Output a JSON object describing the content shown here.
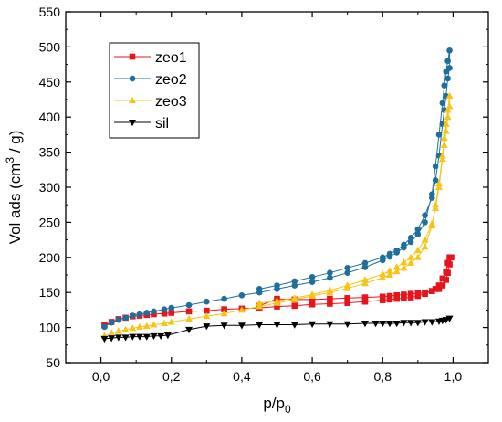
{
  "chart_data": {
    "type": "line",
    "xlabel": "p/p",
    "xlabel_sub": "0",
    "ylabel": "Vol ads (cm",
    "ylabel_sup": "3",
    "ylabel_tail": " / g)",
    "xlim": [
      -0.1,
      1.1
    ],
    "ylim": [
      50,
      550
    ],
    "xticks": [
      0.0,
      0.2,
      0.4,
      0.6,
      0.8,
      1.0
    ],
    "xtick_labels": [
      "0,0",
      "0,2",
      "0,4",
      "0,6",
      "0,8",
      "1,0"
    ],
    "yticks": [
      50,
      100,
      150,
      200,
      250,
      300,
      350,
      400,
      450,
      500,
      550
    ],
    "ytick_labels": [
      "50",
      "100",
      "150",
      "200",
      "250",
      "300",
      "350",
      "400",
      "450",
      "500",
      "550"
    ],
    "grid": false,
    "legend_position": "top-left",
    "series": [
      {
        "name": "zeo1",
        "color": "#e8141c",
        "marker": "square",
        "x": [
          0.01,
          0.03,
          0.05,
          0.07,
          0.09,
          0.11,
          0.13,
          0.15,
          0.18,
          0.2,
          0.25,
          0.3,
          0.35,
          0.4,
          0.45,
          0.5,
          0.55,
          0.6,
          0.65,
          0.7,
          0.75,
          0.8,
          0.82,
          0.84,
          0.86,
          0.88,
          0.9,
          0.92,
          0.94,
          0.95,
          0.96,
          0.97,
          0.98,
          0.985,
          0.99,
          0.995,
          0.99,
          0.985,
          0.98,
          0.97,
          0.96,
          0.94,
          0.92,
          0.9,
          0.88,
          0.86,
          0.84,
          0.82,
          0.8,
          0.75,
          0.7,
          0.65,
          0.6,
          0.55,
          0.5,
          0.45
        ],
        "y": [
          103,
          108,
          112,
          114,
          116,
          117,
          118,
          119,
          120,
          121,
          123,
          124,
          126,
          127,
          128,
          130,
          131,
          133,
          134,
          135,
          137,
          139,
          140,
          141,
          142,
          143,
          145,
          148,
          152,
          155,
          160,
          170,
          180,
          192,
          200,
          200,
          190,
          178,
          168,
          160,
          155,
          152,
          150,
          149,
          148,
          147,
          146,
          145,
          144,
          143,
          142,
          141,
          140,
          140,
          141,
          131
        ]
      },
      {
        "name": "zeo2",
        "color": "#1f6f9c",
        "marker": "circle",
        "x": [
          0.01,
          0.03,
          0.05,
          0.07,
          0.09,
          0.11,
          0.13,
          0.15,
          0.18,
          0.2,
          0.25,
          0.3,
          0.35,
          0.4,
          0.45,
          0.5,
          0.55,
          0.6,
          0.65,
          0.7,
          0.75,
          0.8,
          0.82,
          0.84,
          0.86,
          0.88,
          0.9,
          0.92,
          0.94,
          0.95,
          0.96,
          0.97,
          0.975,
          0.98,
          0.985,
          0.99,
          0.99,
          0.985,
          0.98,
          0.975,
          0.97,
          0.96,
          0.95,
          0.94,
          0.92,
          0.9,
          0.88,
          0.86,
          0.84,
          0.82,
          0.8,
          0.75,
          0.7,
          0.65,
          0.6,
          0.55,
          0.5,
          0.45
        ],
        "y": [
          101,
          107,
          111,
          114,
          117,
          119,
          121,
          123,
          126,
          128,
          132,
          137,
          141,
          146,
          150,
          155,
          160,
          165,
          171,
          178,
          186,
          196,
          201,
          207,
          214,
          222,
          233,
          250,
          290,
          330,
          375,
          420,
          445,
          465,
          480,
          495,
          470,
          455,
          430,
          410,
          390,
          345,
          310,
          285,
          260,
          240,
          228,
          218,
          210,
          205,
          200,
          192,
          185,
          178,
          172,
          166,
          160,
          155
        ]
      },
      {
        "name": "zeo3",
        "color": "#f5c518",
        "marker": "triangle-up",
        "x": [
          0.01,
          0.03,
          0.05,
          0.07,
          0.09,
          0.11,
          0.13,
          0.15,
          0.18,
          0.2,
          0.25,
          0.3,
          0.35,
          0.4,
          0.45,
          0.5,
          0.55,
          0.6,
          0.65,
          0.7,
          0.75,
          0.8,
          0.82,
          0.84,
          0.86,
          0.88,
          0.9,
          0.92,
          0.94,
          0.95,
          0.96,
          0.97,
          0.975,
          0.98,
          0.985,
          0.99,
          0.99,
          0.985,
          0.98,
          0.975,
          0.97,
          0.96,
          0.95,
          0.94,
          0.92,
          0.9,
          0.88,
          0.86,
          0.84,
          0.82,
          0.8,
          0.75,
          0.7,
          0.65,
          0.6,
          0.55,
          0.5,
          0.45
        ],
        "y": [
          88,
          92,
          95,
          97,
          99,
          101,
          102,
          104,
          106,
          108,
          112,
          116,
          120,
          125,
          130,
          135,
          140,
          145,
          150,
          156,
          163,
          171,
          175,
          180,
          185,
          192,
          200,
          215,
          245,
          275,
          305,
          345,
          370,
          390,
          410,
          430,
          415,
          400,
          380,
          360,
          340,
          300,
          270,
          248,
          225,
          210,
          200,
          193,
          186,
          181,
          176,
          168,
          160,
          153,
          147,
          142,
          138,
          135
        ]
      },
      {
        "name": "sil",
        "color": "#000000",
        "marker": "triangle-down",
        "x": [
          0.01,
          0.03,
          0.05,
          0.07,
          0.09,
          0.11,
          0.13,
          0.15,
          0.17,
          0.19,
          0.25,
          0.3,
          0.35,
          0.4,
          0.45,
          0.5,
          0.55,
          0.6,
          0.65,
          0.7,
          0.75,
          0.78,
          0.8,
          0.82,
          0.84,
          0.86,
          0.88,
          0.9,
          0.92,
          0.94,
          0.96,
          0.97,
          0.98,
          0.99
        ],
        "y": [
          84,
          85,
          86,
          86,
          87,
          87,
          87,
          88,
          88,
          89,
          97,
          102,
          103,
          103,
          104,
          104,
          104,
          105,
          105,
          105,
          106,
          106,
          106,
          106,
          106,
          107,
          107,
          107,
          108,
          108,
          109,
          110,
          111,
          113
        ]
      }
    ]
  }
}
